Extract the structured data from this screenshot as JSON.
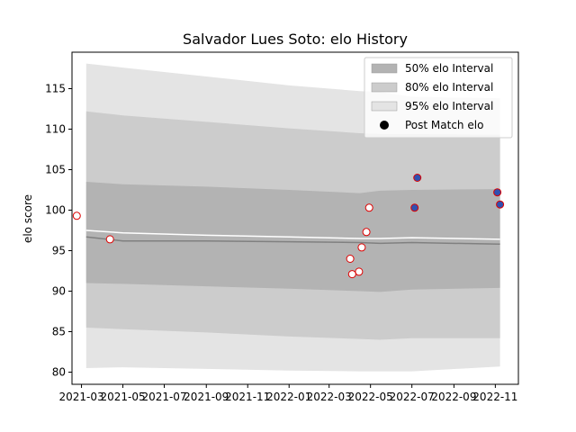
{
  "chart_data": {
    "type": "line",
    "title": "Salvador Lues Soto: elo History",
    "xlabel": "",
    "ylabel": "elo score",
    "xlim": [
      "2021-02-15",
      "2022-12-05"
    ],
    "ylim": [
      78.5,
      119.5
    ],
    "x_ticks": [
      "2021-03",
      "2021-05",
      "2021-07",
      "2021-09",
      "2021-11",
      "2022-01",
      "2022-03",
      "2022-05",
      "2022-07",
      "2022-09",
      "2022-11"
    ],
    "y_ticks": [
      80,
      85,
      90,
      95,
      100,
      105,
      110,
      115
    ],
    "grid": false,
    "legend_position": "top-right",
    "legend": [
      {
        "label": "50% elo Interval",
        "kind": "band",
        "color": "#b3b3b3"
      },
      {
        "label": "80% elo Interval",
        "kind": "band",
        "color": "#cccccc"
      },
      {
        "label": "95% elo Interval",
        "kind": "band",
        "color": "#e4e4e4"
      },
      {
        "label": "Post Match elo",
        "kind": "marker",
        "color": "#000000"
      }
    ],
    "band_dates": [
      "2021-03-08",
      "2021-05-01",
      "2021-09-01",
      "2022-01-01",
      "2022-04-15",
      "2022-05-15",
      "2022-07-01",
      "2022-11-08"
    ],
    "bands": {
      "p95": {
        "lower": [
          80.5,
          80.6,
          80.4,
          80.2,
          80.1,
          80.1,
          80.1,
          80.7
        ],
        "upper": [
          118.1,
          117.6,
          116.5,
          115.4,
          114.7,
          114.6,
          114.0,
          113.8
        ]
      },
      "p80": {
        "lower": [
          85.5,
          85.3,
          84.9,
          84.4,
          84.1,
          84.0,
          84.2,
          84.2
        ],
        "upper": [
          112.2,
          111.7,
          110.9,
          110.1,
          109.5,
          109.4,
          109.4,
          109.3
        ]
      },
      "p50": {
        "lower": [
          91.0,
          90.9,
          90.6,
          90.3,
          90.0,
          89.9,
          90.2,
          90.4
        ],
        "upper": [
          103.5,
          103.2,
          102.9,
          102.5,
          102.1,
          102.4,
          102.5,
          102.6
        ]
      }
    },
    "median_line": {
      "color": "#808080",
      "values": [
        96.7,
        96.2,
        96.2,
        96.1,
        96.0,
        95.9,
        96.0,
        95.8
      ]
    },
    "mean_line": {
      "color": "#ffffff",
      "values": [
        97.5,
        97.2,
        96.9,
        96.7,
        96.5,
        96.5,
        96.6,
        96.4
      ]
    },
    "series": [
      {
        "name": "Post Match elo",
        "marker_style": "open",
        "face_color": "#ffffff",
        "edge_color": "#dd0000",
        "points": [
          {
            "x": "2021-02-22",
            "y": 99.3
          },
          {
            "x": "2021-04-12",
            "y": 96.4
          },
          {
            "x": "2022-04-01",
            "y": 94.0
          },
          {
            "x": "2022-04-04",
            "y": 92.1
          },
          {
            "x": "2022-04-14",
            "y": 92.4
          },
          {
            "x": "2022-04-18",
            "y": 95.4
          },
          {
            "x": "2022-04-25",
            "y": 97.3
          },
          {
            "x": "2022-04-29",
            "y": 100.3
          }
        ]
      },
      {
        "name": "Post Match elo",
        "marker_style": "filled",
        "face_color": "#3050b0",
        "edge_color": "#dd0000",
        "points": [
          {
            "x": "2022-07-05",
            "y": 100.3
          },
          {
            "x": "2022-07-09",
            "y": 104.0
          },
          {
            "x": "2022-11-04",
            "y": 102.2
          },
          {
            "x": "2022-11-08",
            "y": 100.7
          }
        ]
      }
    ]
  }
}
